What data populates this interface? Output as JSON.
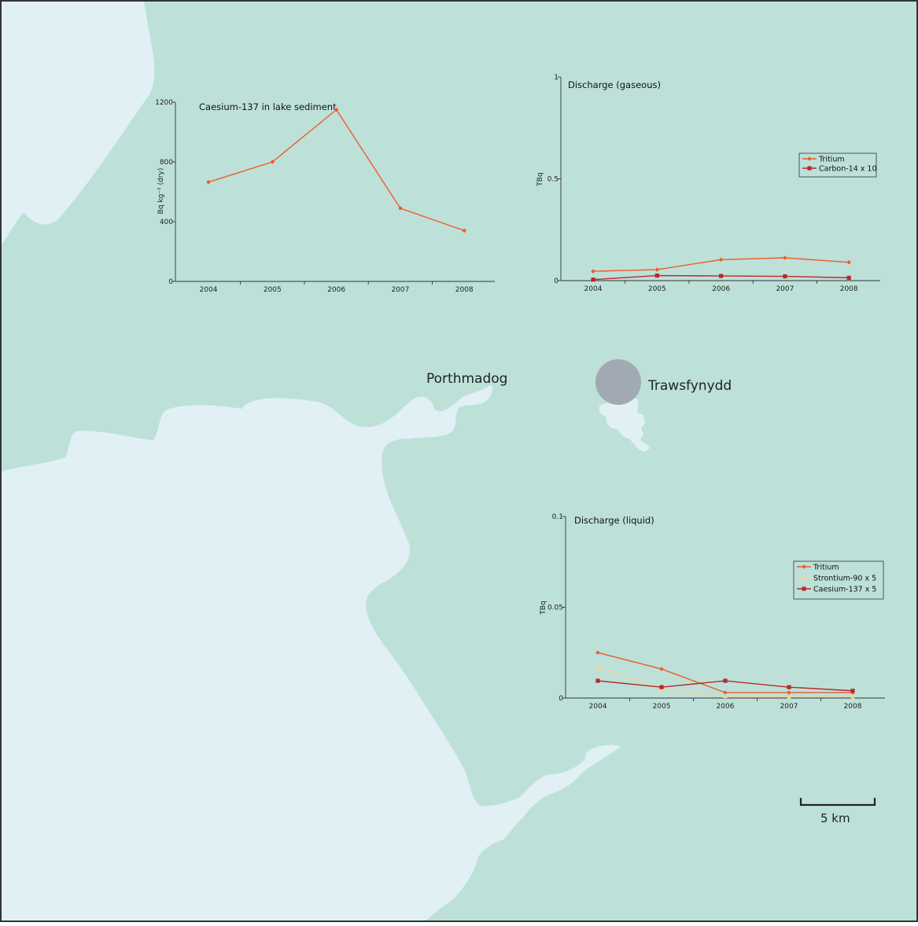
{
  "map": {
    "colors": {
      "land": "#bde1d8",
      "water": "#e1f0f5",
      "reservoir": "#a1aab3",
      "border": "#333333"
    },
    "places": [
      {
        "id": "porthmadog",
        "name": "Porthmadog"
      },
      {
        "id": "trawsfynydd",
        "name": "Trawsfynydd"
      }
    ],
    "scale_bar": {
      "label": "5 km"
    }
  },
  "chart_data": [
    {
      "id": "sediment",
      "type": "line",
      "title": "Caesium-137 in lake sediment",
      "xlabel": "",
      "ylabel": "Bq kg⁻¹ (dry)",
      "categories": [
        "2004",
        "2005",
        "2006",
        "2007",
        "2008"
      ],
      "ylim": [
        0,
        1200
      ],
      "yticks": [
        0,
        400,
        800,
        1200
      ],
      "ytick_labels": [
        "0",
        "400",
        "800",
        "1200"
      ],
      "legend": null,
      "series": [
        {
          "name": "",
          "color": "#ef5b2b",
          "marker": "diamond",
          "values": [
            665,
            800,
            1150,
            490,
            340
          ]
        }
      ]
    },
    {
      "id": "gaseous",
      "type": "line",
      "title": "Discharge (gaseous)",
      "xlabel": "",
      "ylabel": "TBq",
      "categories": [
        "2004",
        "2005",
        "2006",
        "2007",
        "2008"
      ],
      "ylim": [
        0,
        1
      ],
      "yticks": [
        0,
        0.5,
        1
      ],
      "ytick_labels": [
        "0",
        "0.5",
        "1"
      ],
      "legend": "right",
      "series": [
        {
          "name": "Tritium",
          "color": "#ef5b2b",
          "marker": "diamond",
          "values": [
            0.046,
            0.054,
            0.103,
            0.112,
            0.09
          ]
        },
        {
          "name": "Carbon-14 x 10",
          "color": "#b9282d",
          "marker": "square",
          "values": [
            0.005,
            0.025,
            0.023,
            0.021,
            0.014
          ]
        }
      ]
    },
    {
      "id": "liquid",
      "type": "line",
      "title": "Discharge (liquid)",
      "xlabel": "",
      "ylabel": "TBq",
      "categories": [
        "2004",
        "2005",
        "2006",
        "2007",
        "2008"
      ],
      "ylim": [
        0,
        0.1
      ],
      "yticks": [
        0,
        0.05,
        0.1
      ],
      "ytick_labels": [
        "0",
        "0.05",
        "0.1"
      ],
      "legend": "right",
      "series": [
        {
          "name": "Tritium",
          "color": "#ef5b2b",
          "marker": "diamond",
          "values": [
            0.025,
            0.016,
            0.003,
            0.003,
            0.003
          ]
        },
        {
          "name": "Strontium-90 x 5",
          "color": "#f5d19a",
          "marker": "triangle",
          "values": [
            0.017,
            0.005,
            0.001,
            0.0005,
            0.0005
          ]
        },
        {
          "name": "Caesium-137 x 5",
          "color": "#b9282d",
          "marker": "square",
          "values": [
            0.0095,
            0.006,
            0.0095,
            0.006,
            0.004
          ]
        }
      ]
    }
  ]
}
